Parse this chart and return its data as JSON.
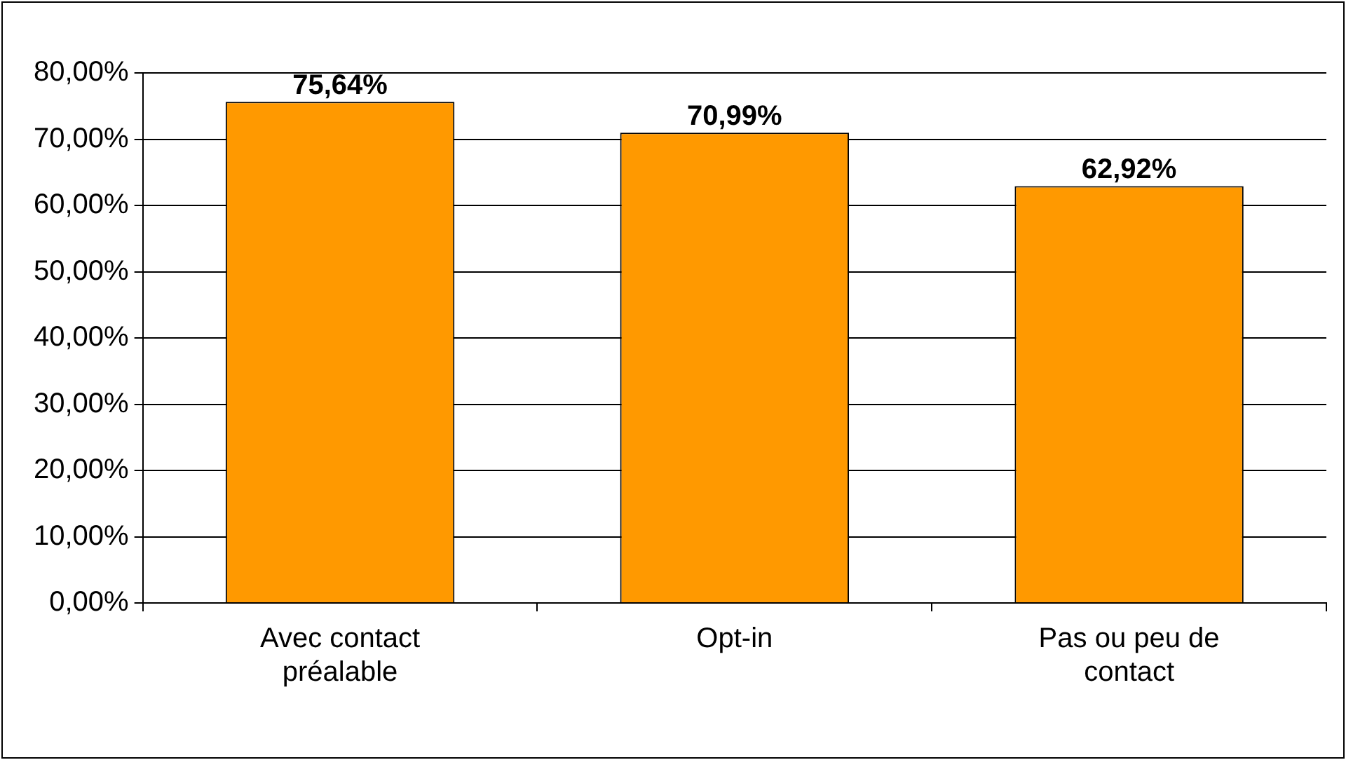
{
  "chart_data": {
    "type": "bar",
    "categories": [
      "Avec contact préalable",
      "Opt-in",
      "Pas ou peu de contact"
    ],
    "values": [
      75.64,
      70.99,
      62.92
    ],
    "color": "#ff9900",
    "value_labels": [
      "75,64%",
      "70,99%",
      "62,92%"
    ],
    "ylim": [
      0,
      80
    ],
    "yticks": [
      {
        "value": 0,
        "label": "0,00%"
      },
      {
        "value": 10,
        "label": "10,00%"
      },
      {
        "value": 20,
        "label": "20,00%"
      },
      {
        "value": 30,
        "label": "30,00%"
      },
      {
        "value": 40,
        "label": "40,00%"
      },
      {
        "value": 50,
        "label": "50,00%"
      },
      {
        "value": 60,
        "label": "60,00%"
      },
      {
        "value": 70,
        "label": "70,00%"
      },
      {
        "value": 80,
        "label": "80,00%"
      }
    ],
    "grid": "y",
    "legend": false
  }
}
